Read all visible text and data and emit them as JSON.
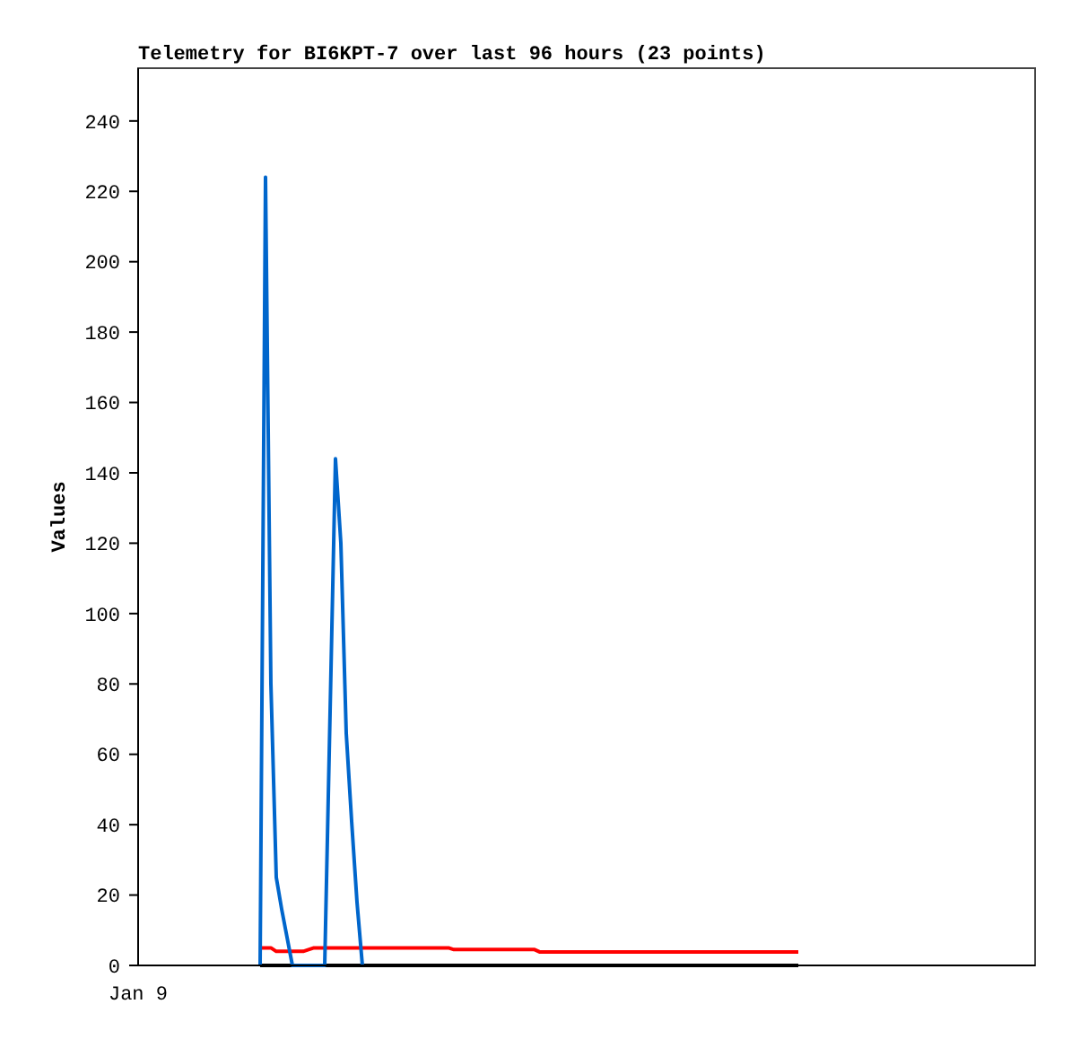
{
  "chart_data": {
    "type": "line",
    "title": "Telemetry for BI6KPT-7 over last 96 hours (23 points)",
    "ylabel": "Values",
    "annotations": [
      "Jan 9"
    ],
    "ylim": [
      0,
      255
    ],
    "yticks": [
      0,
      20,
      40,
      60,
      80,
      100,
      120,
      140,
      160,
      180,
      200,
      220,
      240
    ],
    "grid": false,
    "categories": [
      null,
      null,
      null,
      null,
      null,
      null,
      null,
      null,
      null,
      null,
      null,
      null,
      null,
      null,
      null,
      null,
      null,
      null,
      null,
      null,
      null,
      null,
      null,
      null,
      null,
      null,
      null,
      null,
      null,
      null,
      null,
      null,
      null,
      null,
      null,
      null,
      null,
      null,
      null,
      null,
      null,
      null,
      null,
      null,
      null,
      null,
      null,
      null,
      null,
      null,
      null,
      null,
      null,
      null,
      null,
      null,
      null,
      null,
      null,
      null,
      null,
      null,
      null,
      null,
      null,
      null,
      null,
      null,
      null,
      null,
      null,
      null,
      null,
      null,
      null,
      null,
      null,
      null,
      null,
      null,
      null,
      null,
      null,
      null,
      null,
      null,
      null,
      null,
      null,
      null,
      null,
      null,
      null,
      null,
      null,
      null,
      null,
      null,
      null,
      null,
      null
    ],
    "series": [
      {
        "color": "#000000",
        "values": [
          0,
          0,
          0,
          0,
          0,
          0,
          0,
          0,
          0,
          0,
          0,
          0,
          0,
          0,
          0,
          0,
          0,
          0,
          0,
          0,
          0,
          0,
          0,
          0,
          0,
          0,
          0,
          0,
          0,
          0,
          0,
          0,
          0,
          0,
          0,
          0,
          0,
          0,
          0,
          0,
          0,
          0,
          0,
          0,
          0,
          0,
          0,
          0,
          0,
          0,
          0,
          0,
          0,
          0,
          0,
          0,
          0,
          0,
          0,
          0,
          0,
          0,
          0,
          0,
          0,
          0,
          0,
          0,
          0,
          0,
          0,
          0,
          0,
          0,
          0,
          0,
          0,
          0,
          0,
          0,
          0,
          0,
          0,
          0,
          0,
          0,
          0,
          0,
          0,
          0,
          0,
          0,
          0,
          0,
          0,
          0,
          0,
          0,
          0,
          0,
          0
        ]
      },
      {
        "color": "#ff0000",
        "values": [
          5,
          5,
          5,
          4,
          4,
          4,
          4,
          4,
          4,
          4.5,
          5,
          5,
          5,
          5,
          5,
          5,
          5,
          5,
          5,
          5,
          5,
          5,
          5,
          5,
          5,
          5,
          5,
          5,
          5,
          5,
          5,
          5,
          5,
          5,
          5,
          5,
          4.5,
          4.5,
          4.5,
          4.5,
          4.5,
          4.5,
          4.5,
          4.5,
          4.5,
          4.5,
          4.5,
          4.5,
          4.5,
          4.5,
          4.5,
          4.5,
          3.8,
          3.8,
          3.8,
          3.8,
          3.8,
          3.8,
          3.8,
          3.8,
          3.8,
          3.8,
          3.8,
          3.8,
          3.8,
          3.8,
          3.8,
          3.8,
          3.8,
          3.8,
          3.8,
          3.8,
          3.8,
          3.8,
          3.8,
          3.8,
          3.8,
          3.8,
          3.8,
          3.8,
          3.8,
          3.8,
          3.8,
          3.8,
          3.8,
          3.8,
          3.8,
          3.8,
          3.8,
          3.8,
          3.8,
          3.8,
          3.8,
          3.8,
          3.8,
          3.8,
          3.8,
          3.8,
          3.8,
          3.8,
          3.8
        ]
      },
      {
        "color": "#0066cc",
        "values": [
          0,
          224,
          80,
          25,
          16,
          8,
          0,
          0,
          0,
          0,
          0,
          0,
          0,
          72,
          144,
          120,
          66,
          41,
          18,
          0,
          null,
          null,
          null,
          null,
          null,
          null,
          null,
          null,
          null,
          null,
          null,
          null,
          null,
          null,
          null,
          null,
          null,
          null,
          null,
          null,
          null,
          null,
          null,
          null,
          null,
          null,
          null,
          null,
          null,
          null,
          null,
          null,
          null,
          null,
          null,
          null,
          null,
          null,
          null,
          null,
          null,
          null,
          null,
          null,
          null,
          null,
          null,
          null,
          null,
          null,
          null,
          null,
          null,
          null,
          null,
          null,
          null,
          null,
          null,
          null,
          null,
          null,
          null,
          null,
          null,
          null,
          null,
          null,
          null,
          null,
          null,
          null,
          null,
          null,
          null,
          null,
          null,
          null,
          null,
          null,
          null
        ]
      }
    ]
  }
}
